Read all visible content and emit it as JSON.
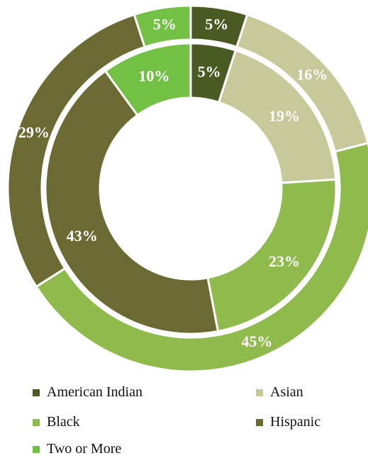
{
  "chart_data": {
    "type": "pie",
    "title": "",
    "categories": [
      "American Indian",
      "Asian",
      "Black",
      "Hispanic",
      "Two or More"
    ],
    "colors": [
      "#4a5a23",
      "#c8c99a",
      "#8fba4c",
      "#6b6a33",
      "#72c145"
    ],
    "series": [
      {
        "values": [
          5,
          16,
          45,
          29,
          5
        ],
        "labels": [
          "5%",
          "16%",
          "45%",
          "29%",
          "5%"
        ]
      },
      {
        "values": [
          5,
          19,
          23,
          43,
          10
        ],
        "labels": [
          "5%",
          "19%",
          "23%",
          "43%",
          "10%"
        ]
      }
    ],
    "legend_position": "bottom"
  },
  "legend": {
    "items": [
      "American Indian",
      "Asian",
      "Black",
      "Hispanic",
      "Two or More"
    ]
  }
}
